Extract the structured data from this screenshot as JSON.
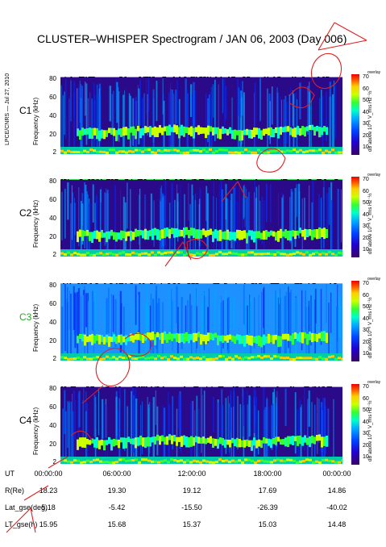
{
  "title": "CLUSTER–WHISPER Spectrogram / JAN 06, 2003 (Day 006)",
  "side_label": "LPCE/CNRS — Jul 27, 2010",
  "colors": {
    "stamp_red": "#e02020",
    "strip_green": "#44dd66",
    "c3_label": "#19b419"
  },
  "chart_data": [
    {
      "type": "heatmap",
      "spacecraft": "C1",
      "ylabel": "Frequency (kHz)",
      "yticks": [
        "80",
        "60",
        "40",
        "20",
        "2"
      ],
      "ylim": [
        2,
        80
      ],
      "colorbar": {
        "ticks": [
          "70",
          "60",
          "50",
          "40",
          "30",
          "20",
          "10"
        ],
        "unit": "dB above 10⁻⁸ V_rms Hz⁻½",
        "header": "overlay"
      },
      "xticks": [
        "00:00:00",
        "06:00:00",
        "12:00:00",
        "18:00:00",
        "00:00:00"
      ]
    },
    {
      "type": "heatmap",
      "spacecraft": "C2",
      "ylabel": "Frequency (kHz)",
      "yticks": [
        "80",
        "60",
        "40",
        "20",
        "2"
      ],
      "ylim": [
        2,
        80
      ],
      "colorbar": {
        "ticks": [
          "70",
          "60",
          "50",
          "40",
          "30",
          "20",
          "10"
        ],
        "unit": "dB above 10⁻⁸ V_rms Hz⁻½",
        "header": "overlay"
      },
      "xticks": [
        "00:00:00",
        "06:00:00",
        "12:00:00",
        "18:00:00",
        "00:00:00"
      ]
    },
    {
      "type": "heatmap",
      "spacecraft": "C3",
      "ylabel": "Frequency (kHz)",
      "yticks": [
        "80",
        "60",
        "40",
        "20",
        "2"
      ],
      "ylim": [
        2,
        80
      ],
      "colorbar": {
        "ticks": [
          "70",
          "60",
          "50",
          "40",
          "30",
          "20",
          "10"
        ],
        "unit": "dB above 10⁻⁸ V_rms Hz⁻½",
        "header": "overlay"
      },
      "xticks": [
        "00:00:00",
        "06:00:00",
        "12:00:00",
        "18:00:00",
        "00:00:00"
      ]
    },
    {
      "type": "heatmap",
      "spacecraft": "C4",
      "ylabel": "Frequency (kHz)",
      "yticks": [
        "80",
        "60",
        "40",
        "20",
        "2"
      ],
      "ylim": [
        2,
        80
      ],
      "colorbar": {
        "ticks": [
          "70",
          "60",
          "50",
          "40",
          "30",
          "20",
          "10"
        ],
        "unit": "dB above 10⁻⁸ V_rms Hz⁻½",
        "header": "overlay"
      },
      "xticks": [
        "00:00:00",
        "06:00:00",
        "12:00:00",
        "18:00:00",
        "00:00:00"
      ]
    }
  ],
  "orbit_table": {
    "rows": [
      {
        "label": "UT",
        "values": [
          "00:00:00",
          "06:00:00",
          "12:00:00",
          "18:00:00",
          "00:00:00"
        ]
      },
      {
        "label": "R(Re)",
        "values": [
          "18.23",
          "19.30",
          "19.12",
          "17.69",
          "14.86"
        ]
      },
      {
        "label": "Lat_gse(deg)",
        "values": [
          "5.18",
          "-5.42",
          "-15.50",
          "-26.39",
          "-40.02"
        ]
      },
      {
        "label": "LT_gse(h)",
        "values": [
          "15.95",
          "15.68",
          "15.37",
          "15.03",
          "14.48"
        ]
      }
    ]
  }
}
